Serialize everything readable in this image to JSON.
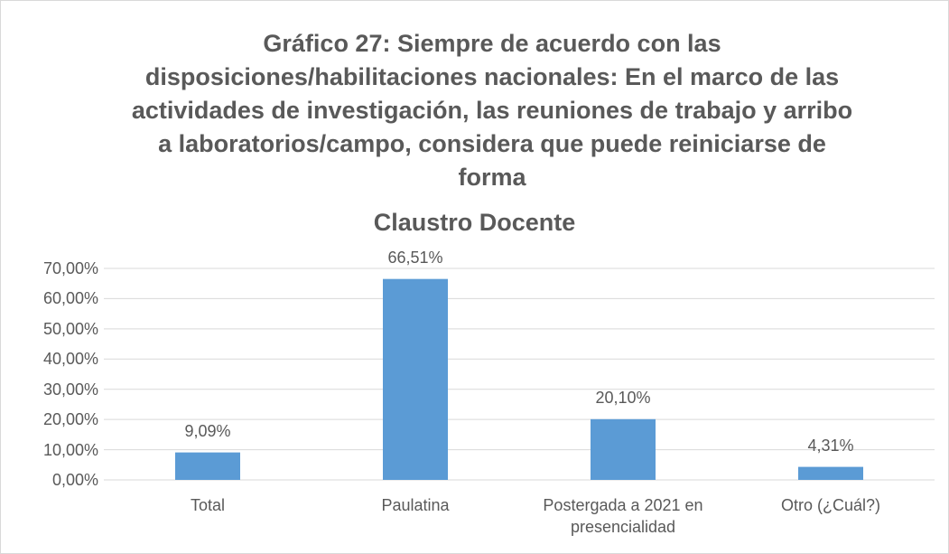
{
  "chart_data": {
    "type": "bar",
    "title": "Gráfico 27: Siempre de acuerdo con las disposiciones/habilitaciones nacionales: En el marco de las actividades de investigación, las reuniones de trabajo y arribo a laboratorios/campo, considera que puede reiniciarse de forma",
    "subtitle": "Claustro Docente",
    "categories": [
      "Total",
      "Paulatina",
      "Postergada a 2021 en presencialidad",
      "Otro (¿Cuál?)"
    ],
    "values": [
      9.09,
      66.51,
      20.1,
      4.31
    ],
    "value_labels": [
      "9,09%",
      "66,51%",
      "20,10%",
      "4,31%"
    ],
    "color": "#5b9bd5",
    "ylim": [
      0,
      70
    ],
    "yticks": [
      {
        "value": 0,
        "label": "0,00%"
      },
      {
        "value": 10,
        "label": "10,00%"
      },
      {
        "value": 20,
        "label": "20,00%"
      },
      {
        "value": 30,
        "label": "30,00%"
      },
      {
        "value": 40,
        "label": "40,00%"
      },
      {
        "value": 50,
        "label": "50,00%"
      },
      {
        "value": 60,
        "label": "60,00%"
      },
      {
        "value": 70,
        "label": "70,00%"
      }
    ],
    "grid": true
  }
}
